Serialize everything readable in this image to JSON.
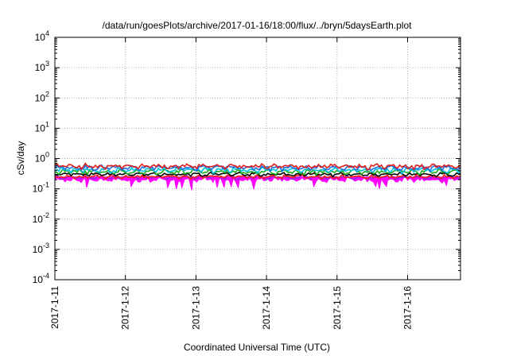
{
  "chart_data": {
    "type": "area",
    "title": "/data/run/goesPlots/archive/2017-01-16/18:00/flux/../bryn/5daysEarth.plot",
    "xlabel": "Coordinated Universal Time (UTC)",
    "ylabel": "cSv/day",
    "yscale": "log",
    "ylim": [
      0.0001,
      10000
    ],
    "xlim": [
      "2017-01-11",
      "2017-01-16 18:00"
    ],
    "grid": true,
    "x_ticks": [
      "2017-1-11",
      "2017-1-12",
      "2017-1-13",
      "2017-1-14",
      "2017-1-15",
      "2017-1-16"
    ],
    "y_ticks": [
      {
        "base": "10",
        "exp": "-4"
      },
      {
        "base": "10",
        "exp": "-3"
      },
      {
        "base": "10",
        "exp": "-2"
      },
      {
        "base": "10",
        "exp": "-1"
      },
      {
        "base": "10",
        "exp": "0"
      },
      {
        "base": "10",
        "exp": "1"
      },
      {
        "base": "10",
        "exp": "2"
      },
      {
        "base": "10",
        "exp": "3"
      },
      {
        "base": "10",
        "exp": "4"
      }
    ],
    "series": [
      {
        "color": "#ff00ff",
        "base_value": 0.2,
        "amplitude": 0.05,
        "dips": [
          {
            "x": "2017-01-11 10:48",
            "value": 0.11
          },
          {
            "x": "2017-01-12 01:55",
            "value": 0.12
          },
          {
            "x": "2017-01-12 14:24",
            "value": 0.11
          },
          {
            "x": "2017-01-12 17:17",
            "value": 0.1
          },
          {
            "x": "2017-01-12 19:12",
            "value": 0.11
          },
          {
            "x": "2017-01-12 22:34",
            "value": 0.09
          },
          {
            "x": "2017-01-13 07:12",
            "value": 0.11
          },
          {
            "x": "2017-01-13 09:36",
            "value": 0.11
          },
          {
            "x": "2017-01-13 12:00",
            "value": 0.12
          },
          {
            "x": "2017-01-13 14:24",
            "value": 0.11
          },
          {
            "x": "2017-01-13 19:41",
            "value": 0.1
          },
          {
            "x": "2017-01-14 16:05",
            "value": 0.12
          },
          {
            "x": "2017-01-15 13:12",
            "value": 0.12
          },
          {
            "x": "2017-01-15 14:24",
            "value": 0.1
          },
          {
            "x": "2017-01-15 16:48",
            "value": 0.12
          },
          {
            "x": "2017-01-16 13:12",
            "value": 0.13
          }
        ]
      },
      {
        "color": "#8b2be2",
        "base_value": 0.24,
        "amplitude": 0.05
      },
      {
        "color": "#ff1a1a",
        "base_value": 0.25,
        "amplitude": 0.05
      },
      {
        "color": "#000000",
        "base_value": 0.3,
        "amplitude": 0.06
      },
      {
        "color": "#1aaa1a",
        "base_value": 0.37,
        "amplitude": 0.1
      },
      {
        "color": "#00c0e0",
        "base_value": 0.42,
        "amplitude": 0.12
      },
      {
        "color": "#1e6fe0",
        "base_value": 0.5,
        "amplitude": 0.14
      },
      {
        "color": "#e01e1e",
        "base_value": 0.55,
        "amplitude": 0.16
      }
    ]
  }
}
